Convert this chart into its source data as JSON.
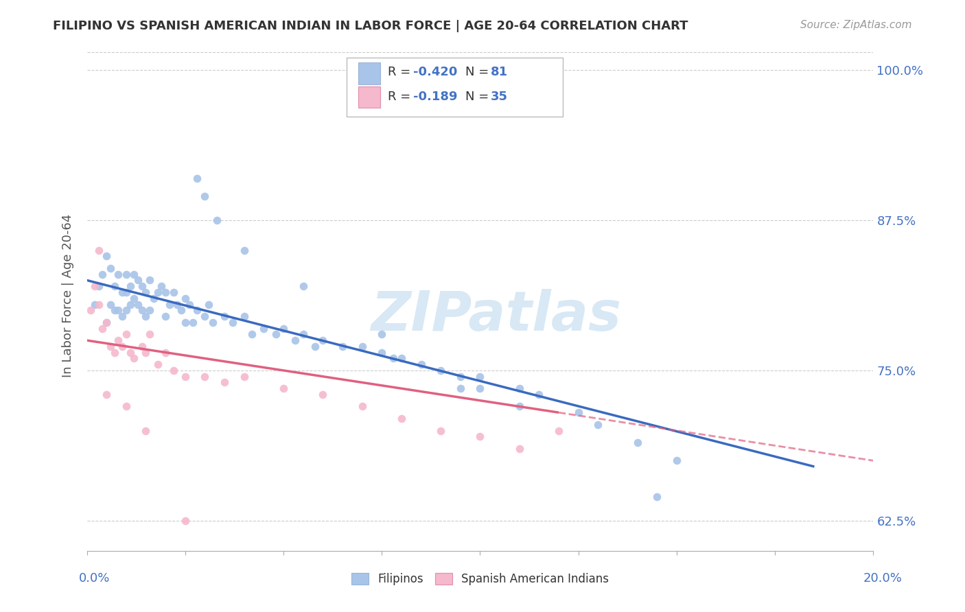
{
  "title": "FILIPINO VS SPANISH AMERICAN INDIAN IN LABOR FORCE | AGE 20-64 CORRELATION CHART",
  "source": "Source: ZipAtlas.com",
  "ylabel_label": "In Labor Force | Age 20-64",
  "xmin": 0.0,
  "xmax": 20.0,
  "ymin": 60.0,
  "ymax": 102.5,
  "yticks": [
    62.5,
    75.0,
    87.5,
    100.0
  ],
  "xticks": [
    0.0,
    2.5,
    5.0,
    7.5,
    10.0,
    12.5,
    15.0,
    17.5,
    20.0
  ],
  "R_filipino": -0.42,
  "N_filipino": 81,
  "R_spanish": -0.189,
  "N_spanish": 35,
  "color_filipino": "#a8c4e8",
  "color_filipino_line": "#3a6abf",
  "color_spanish": "#f5b8cc",
  "color_spanish_line": "#e06080",
  "color_text_blue": "#4472c4",
  "watermark_color": "#d8e8f5",
  "fil_line_x0": 0.0,
  "fil_line_y0": 82.5,
  "fil_line_x1": 18.5,
  "fil_line_y1": 67.0,
  "spa_line_x0": 0.0,
  "spa_line_y0": 77.5,
  "spa_line_x1": 20.0,
  "spa_line_y1": 67.5,
  "spa_solid_end": 12.0,
  "fil_scatter_x": [
    0.2,
    0.3,
    0.4,
    0.5,
    0.5,
    0.6,
    0.6,
    0.7,
    0.7,
    0.8,
    0.8,
    0.9,
    0.9,
    1.0,
    1.0,
    1.0,
    1.1,
    1.1,
    1.2,
    1.2,
    1.3,
    1.3,
    1.4,
    1.4,
    1.5,
    1.5,
    1.6,
    1.6,
    1.7,
    1.8,
    1.9,
    2.0,
    2.0,
    2.1,
    2.2,
    2.3,
    2.4,
    2.5,
    2.5,
    2.6,
    2.7,
    2.8,
    3.0,
    3.1,
    3.2,
    3.5,
    3.7,
    4.0,
    4.2,
    4.5,
    4.8,
    5.0,
    5.3,
    5.5,
    5.8,
    6.0,
    6.5,
    7.0,
    7.5,
    7.8,
    8.0,
    8.5,
    9.0,
    9.5,
    10.0,
    10.0,
    11.0,
    11.5,
    12.5,
    13.0,
    14.0,
    15.0,
    2.8,
    3.0,
    3.3,
    4.0,
    5.5,
    7.5,
    9.5,
    11.0,
    14.5
  ],
  "fil_scatter_y": [
    80.5,
    82.0,
    83.0,
    84.5,
    79.0,
    83.5,
    80.5,
    82.0,
    80.0,
    83.0,
    80.0,
    81.5,
    79.5,
    83.0,
    81.5,
    80.0,
    82.0,
    80.5,
    83.0,
    81.0,
    82.5,
    80.5,
    82.0,
    80.0,
    81.5,
    79.5,
    82.5,
    80.0,
    81.0,
    81.5,
    82.0,
    81.5,
    79.5,
    80.5,
    81.5,
    80.5,
    80.0,
    81.0,
    79.0,
    80.5,
    79.0,
    80.0,
    79.5,
    80.5,
    79.0,
    79.5,
    79.0,
    79.5,
    78.0,
    78.5,
    78.0,
    78.5,
    77.5,
    78.0,
    77.0,
    77.5,
    77.0,
    77.0,
    76.5,
    76.0,
    76.0,
    75.5,
    75.0,
    74.5,
    74.5,
    73.5,
    73.5,
    73.0,
    71.5,
    70.5,
    69.0,
    67.5,
    91.0,
    89.5,
    87.5,
    85.0,
    82.0,
    78.0,
    73.5,
    72.0,
    64.5
  ],
  "spa_scatter_x": [
    0.1,
    0.2,
    0.3,
    0.4,
    0.5,
    0.6,
    0.7,
    0.8,
    0.9,
    1.0,
    1.1,
    1.2,
    1.4,
    1.5,
    1.6,
    1.8,
    2.0,
    2.2,
    2.5,
    3.0,
    3.5,
    4.0,
    5.0,
    6.0,
    7.0,
    8.0,
    9.0,
    10.0,
    11.0,
    12.0,
    0.3,
    0.5,
    1.0,
    1.5,
    2.5
  ],
  "spa_scatter_y": [
    80.0,
    82.0,
    80.5,
    78.5,
    79.0,
    77.0,
    76.5,
    77.5,
    77.0,
    78.0,
    76.5,
    76.0,
    77.0,
    76.5,
    78.0,
    75.5,
    76.5,
    75.0,
    74.5,
    74.5,
    74.0,
    74.5,
    73.5,
    73.0,
    72.0,
    71.0,
    70.0,
    69.5,
    68.5,
    70.0,
    85.0,
    73.0,
    72.0,
    70.0,
    62.5
  ]
}
